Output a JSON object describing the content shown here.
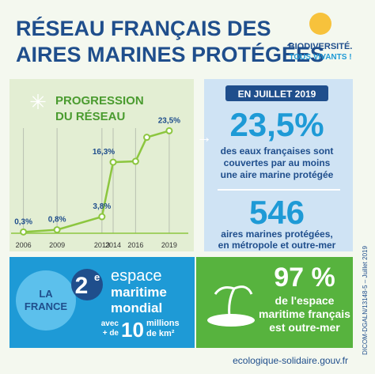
{
  "header": {
    "title_lines": [
      "RÉSEAU FRANÇAIS DES",
      "AIRES MARINES PROTÉGÉES"
    ],
    "logo_lines": [
      "BIODIVERSITÉ.",
      "TOUS VIVANTS !"
    ]
  },
  "chart_data": {
    "type": "line",
    "title_lines": [
      "PROGRESSION",
      "DU RÉSEAU"
    ],
    "x": [
      2006,
      2009,
      2013,
      2014,
      2016,
      2017,
      2019
    ],
    "series": [
      {
        "color": "#8cc63f",
        "values": [
          0.3,
          0.8,
          3.8,
          16.3,
          16.5,
          22,
          23.5
        ],
        "value_labels": [
          "0,3%",
          "0,8%",
          "3,8%",
          "16,3%",
          null,
          null,
          "23,5%"
        ]
      }
    ],
    "xlim": [
      2004.9,
      2020.7
    ],
    "ylim": [
      0,
      35
    ],
    "xticks": [
      2006,
      2009,
      2013,
      2014,
      2016,
      2019
    ],
    "grid": true
  },
  "stats": {
    "badge": "EN JUILLET 2019",
    "share": "23,5%",
    "share_lines": [
      "des eaux françaises sont",
      "couvertes par au moins",
      "une aire marine protégée"
    ],
    "count": "546",
    "count_lines": [
      "aires marines protégées,",
      "en métropole et outre-mer"
    ]
  },
  "world": {
    "country_lines": [
      "LA",
      "FRANCE"
    ],
    "rank": "2",
    "rank_suffix": "e",
    "rank_lines": [
      "espace",
      "maritime",
      "mondial"
    ],
    "area_prefix": [
      "avec",
      "+ de"
    ],
    "area_number": "10",
    "area_suffix": [
      "millions",
      "de km²"
    ]
  },
  "overseas": {
    "share": "97 %",
    "lines": [
      "de l'espace",
      "maritime français",
      "est outre-mer"
    ]
  },
  "credit": "DICOM-DGALN/13148-5 – Juillet 2019",
  "footer": "ecologique-solidaire.gouv.fr"
}
